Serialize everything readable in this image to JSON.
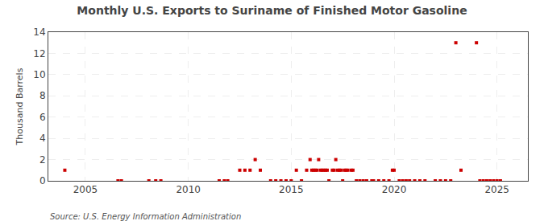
{
  "chart_data": {
    "type": "scatter",
    "title": "Monthly U.S. Exports to Suriname of Finished Motor Gasoline",
    "ylabel": "Thousand Barrels",
    "annotations": [
      "Source: U.S. Energy Information Administration"
    ],
    "x": [
      2004,
      2006.5833333333333,
      2006.75,
      2008.0833333333333,
      2008.4166666666667,
      2008.6666666666667,
      2011.5,
      2011.75,
      2011.9166666666667,
      2012.5,
      2012.75,
      2013,
      2013.25,
      2013.5,
      2014,
      2014.25,
      2014.5,
      2014.75,
      2015,
      2015.25,
      2015.5,
      2015.75,
      2015.9166666666667,
      2016,
      2016.0833333333333,
      2016.1666666666667,
      2016.25,
      2016.3333333333333,
      2016.4166666666667,
      2016.5,
      2016.5833333333333,
      2016.6666666666667,
      2016.75,
      2016.8333333333333,
      2017,
      2017.0833333333333,
      2017.1666666666667,
      2017.25,
      2017.3333333333333,
      2017.4166666666667,
      2017.5,
      2017.5833333333333,
      2017.6666666666667,
      2017.75,
      2017.9166666666667,
      2018,
      2018.1666666666667,
      2018.3333333333333,
      2018.5,
      2018.6666666666667,
      2018.9166666666667,
      2019,
      2019.25,
      2019.5,
      2019.75,
      2019.9166666666667,
      2020,
      2020.25,
      2020.4166666666667,
      2020.5833333333333,
      2020.75,
      2021,
      2021.25,
      2021.5,
      2022,
      2022.25,
      2022.5,
      2022.75,
      2023,
      2023.25,
      2024,
      2024.1666666666667,
      2024.3333333333333,
      2024.5,
      2024.6666666666667,
      2024.8333333333333,
      2025,
      2025.1666666666667
    ],
    "values": [
      1,
      0,
      0,
      0,
      0,
      0,
      0,
      0,
      0,
      1,
      1,
      1,
      2,
      1,
      0,
      0,
      0,
      0,
      0,
      1,
      0,
      1,
      2,
      1,
      1,
      1,
      1,
      2,
      1,
      1,
      1,
      1,
      1,
      0,
      1,
      1,
      2,
      1,
      1,
      1,
      0,
      1,
      1,
      1,
      1,
      1,
      0,
      0,
      0,
      0,
      0,
      0,
      0,
      0,
      0,
      1,
      1,
      0,
      0,
      0,
      0,
      0,
      0,
      0,
      0,
      0,
      0,
      0,
      13,
      1,
      13,
      0,
      0,
      0,
      0,
      0,
      0,
      0
    ],
    "color": "#cc0000",
    "marker": "square",
    "xlim": [
      2003.2,
      2026.5
    ],
    "ylim": [
      0,
      14
    ],
    "xticks": [
      2005,
      2010,
      2015,
      2020,
      2025
    ],
    "yticks": [
      0,
      2,
      4,
      6,
      8,
      10,
      12,
      14
    ],
    "grid": true
  }
}
